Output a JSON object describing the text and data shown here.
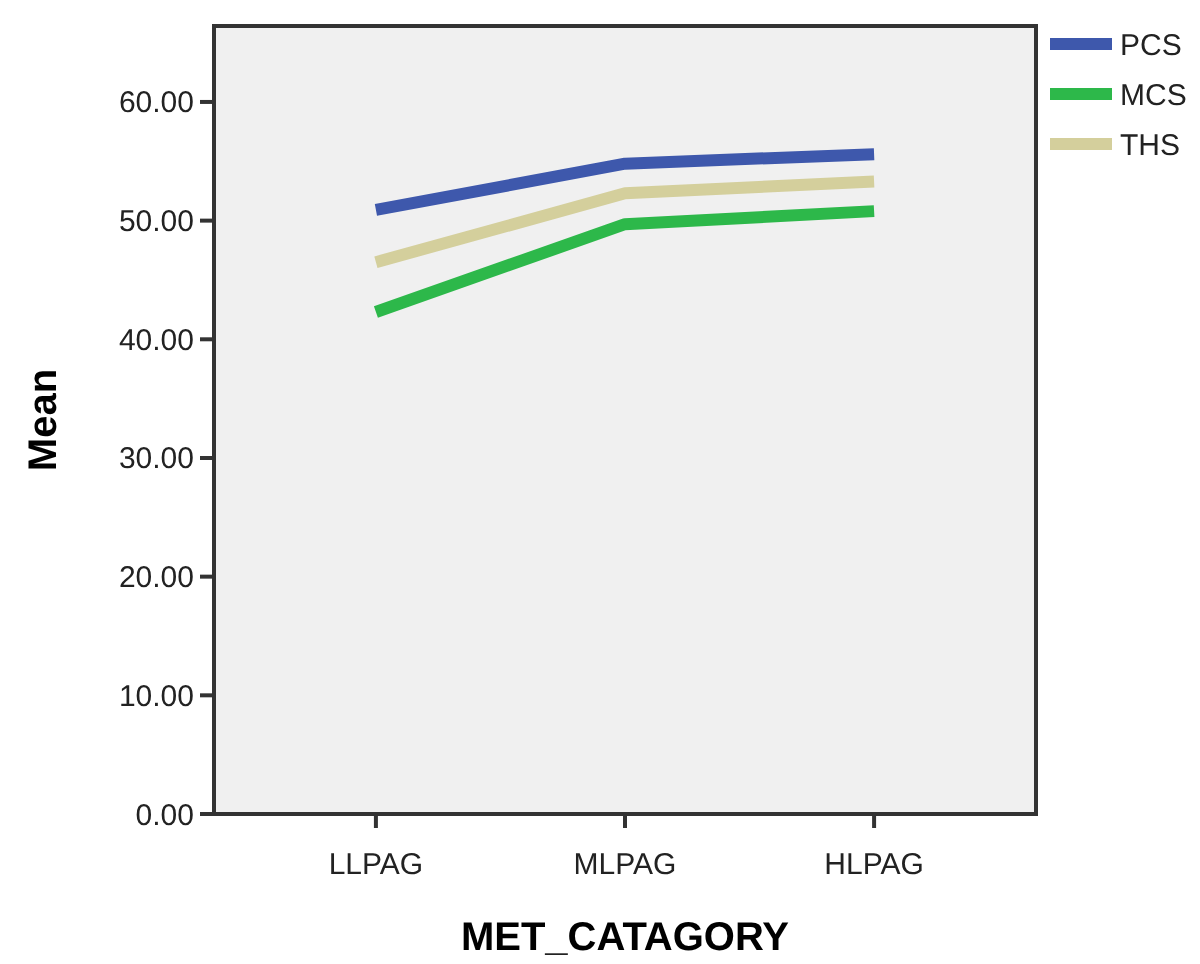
{
  "chart_data": {
    "type": "line",
    "xlabel": "MET_CATAGORY",
    "ylabel": "Mean",
    "categories": [
      "LLPAG",
      "MLPAG",
      "HLPAG"
    ],
    "series": [
      {
        "name": "PCS",
        "color": "#3e58ac",
        "values": [
          50.9,
          54.8,
          55.6
        ]
      },
      {
        "name": "MCS",
        "color": "#2db84a",
        "values": [
          42.3,
          49.7,
          50.8
        ]
      },
      {
        "name": "THS",
        "color": "#d4cf9c",
        "values": [
          46.5,
          52.3,
          53.3
        ]
      }
    ],
    "ylim": [
      0,
      66.4
    ],
    "yticks": [
      {
        "value": 0,
        "label": "0.00"
      },
      {
        "value": 10,
        "label": "10.00"
      },
      {
        "value": 20,
        "label": "20.00"
      },
      {
        "value": 30,
        "label": "30.00"
      },
      {
        "value": 40,
        "label": "40.00"
      },
      {
        "value": 50,
        "label": "50.00"
      },
      {
        "value": 60,
        "label": "60.00"
      }
    ],
    "legend": "top right",
    "marker": "none",
    "line_style": "solid"
  }
}
